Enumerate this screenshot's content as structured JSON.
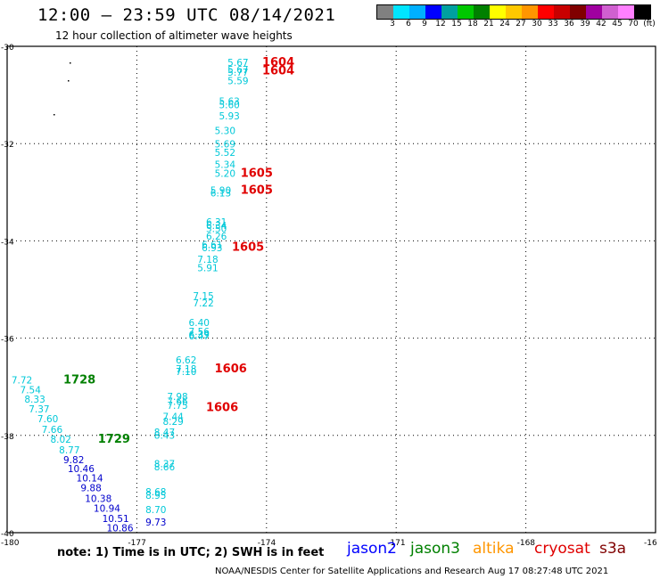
{
  "header": {
    "title": "12:00 – 23:59 UTC 08/14/2021",
    "subtitle": "12 hour collection of altimeter wave heights"
  },
  "colorbar": {
    "colors": [
      "#808080",
      "#00e5ff",
      "#00b0ff",
      "#0000ff",
      "#00a0a0",
      "#00c800",
      "#008000",
      "#ffff00",
      "#ffc800",
      "#ff9600",
      "#ff0000",
      "#c80000",
      "#800000",
      "#a000a0",
      "#d060d0",
      "#ff80ff",
      "#000000"
    ],
    "labels": [
      "3",
      "6",
      "9",
      "12",
      "15",
      "18",
      "21",
      "24",
      "27",
      "30",
      "33",
      "36",
      "39",
      "42",
      "45",
      "70",
      "(ft)"
    ]
  },
  "map": {
    "lat_labels": [
      "-30",
      "-32",
      "-34",
      "-36",
      "-38",
      "-40"
    ],
    "lon_labels": [
      "-180",
      "-177",
      "-174",
      "-171",
      "-168",
      "-16"
    ],
    "grid": "dotted"
  },
  "points": [
    {
      "t": "5.67",
      "lon": -174.9,
      "lat": -30.4,
      "c": "#00c8d8"
    },
    {
      "t": "5.67",
      "lon": -174.9,
      "lat": -30.55,
      "c": "#00c8d8"
    },
    {
      "t": "5.77",
      "lon": -174.9,
      "lat": -30.6,
      "c": "#00c8d8"
    },
    {
      "t": "5.59",
      "lon": -174.9,
      "lat": -30.78,
      "c": "#00c8d8"
    },
    {
      "t": "5.63",
      "lon": -175.1,
      "lat": -31.2,
      "c": "#00c8d8"
    },
    {
      "t": "5.60",
      "lon": -175.1,
      "lat": -31.27,
      "c": "#00c8d8"
    },
    {
      "t": "5.93",
      "lon": -175.1,
      "lat": -31.5,
      "c": "#00c8d8"
    },
    {
      "t": "5.30",
      "lon": -175.2,
      "lat": -31.8,
      "c": "#00c8d8"
    },
    {
      "t": "5.69",
      "lon": -175.2,
      "lat": -32.08,
      "c": "#00c8d8"
    },
    {
      "t": "5.52",
      "lon": -175.2,
      "lat": -32.25,
      "c": "#00c8d8"
    },
    {
      "t": "5.34",
      "lon": -175.2,
      "lat": -32.5,
      "c": "#00c8d8"
    },
    {
      "t": "5.20",
      "lon": -175.2,
      "lat": -32.68,
      "c": "#00c8d8"
    },
    {
      "t": "5.90",
      "lon": -175.3,
      "lat": -33.03,
      "c": "#00c8d8"
    },
    {
      "t": "6.13",
      "lon": -175.3,
      "lat": -33.09,
      "c": "#00c8d8"
    },
    {
      "t": "6.31",
      "lon": -175.4,
      "lat": -33.68,
      "c": "#00c8d8"
    },
    {
      "t": "6.34",
      "lon": -175.4,
      "lat": -33.75,
      "c": "#00c8d8"
    },
    {
      "t": "5.50",
      "lon": -175.4,
      "lat": -33.82,
      "c": "#00c8d8"
    },
    {
      "t": "6.26",
      "lon": -175.4,
      "lat": -33.97,
      "c": "#00c8d8"
    },
    {
      "t": "6.61",
      "lon": -175.5,
      "lat": -34.15,
      "c": "#00c8d8"
    },
    {
      "t": "6.93",
      "lon": -175.5,
      "lat": -34.21,
      "c": "#00c8d8"
    },
    {
      "t": "7.18",
      "lon": -175.6,
      "lat": -34.45,
      "c": "#00c8d8"
    },
    {
      "t": "5.91",
      "lon": -175.6,
      "lat": -34.62,
      "c": "#00c8d8"
    },
    {
      "t": "7.15",
      "lon": -175.7,
      "lat": -35.2,
      "c": "#00c8d8"
    },
    {
      "t": "7.22",
      "lon": -175.7,
      "lat": -35.35,
      "c": "#00c8d8"
    },
    {
      "t": "6.40",
      "lon": -175.8,
      "lat": -35.75,
      "c": "#00c8d8"
    },
    {
      "t": "7.56",
      "lon": -175.8,
      "lat": -35.93,
      "c": "#00c8d8"
    },
    {
      "t": "6.39",
      "lon": -175.8,
      "lat": -36.0,
      "c": "#00c8d8"
    },
    {
      "t": "6.47",
      "lon": -175.8,
      "lat": -36.03,
      "c": "#00c8d8"
    },
    {
      "t": "6.62",
      "lon": -176.1,
      "lat": -36.52,
      "c": "#00c8d8"
    },
    {
      "t": "7.18",
      "lon": -176.1,
      "lat": -36.7,
      "c": "#00c8d8"
    },
    {
      "t": "7.10",
      "lon": -176.1,
      "lat": -36.76,
      "c": "#00c8d8"
    },
    {
      "t": "7.98",
      "lon": -176.3,
      "lat": -37.27,
      "c": "#00c8d8"
    },
    {
      "t": "7.66",
      "lon": -176.3,
      "lat": -37.37,
      "c": "#00c8d8"
    },
    {
      "t": "7.75",
      "lon": -176.3,
      "lat": -37.45,
      "c": "#00c8d8"
    },
    {
      "t": "7.44",
      "lon": -176.4,
      "lat": -37.68,
      "c": "#00c8d8"
    },
    {
      "t": "8.29",
      "lon": -176.4,
      "lat": -37.78,
      "c": "#00c8d8"
    },
    {
      "t": "8.47",
      "lon": -176.6,
      "lat": -38.0,
      "c": "#00c8d8"
    },
    {
      "t": "8.43",
      "lon": -176.6,
      "lat": -38.07,
      "c": "#00c8d8"
    },
    {
      "t": "8.37",
      "lon": -176.6,
      "lat": -38.65,
      "c": "#00c8d8"
    },
    {
      "t": "8.66",
      "lon": -176.6,
      "lat": -38.72,
      "c": "#00c8d8"
    },
    {
      "t": "8.68",
      "lon": -176.8,
      "lat": -39.23,
      "c": "#00c8d8"
    },
    {
      "t": "8.95",
      "lon": -176.8,
      "lat": -39.3,
      "c": "#00c8d8"
    },
    {
      "t": "8.70",
      "lon": -176.8,
      "lat": -39.6,
      "c": "#00c8d8"
    },
    {
      "t": "9.73",
      "lon": -176.8,
      "lat": -39.85,
      "c": "#0000cc"
    },
    {
      "t": "7.72",
      "lon": -179.9,
      "lat": -36.93,
      "c": "#00c8d8"
    },
    {
      "t": "7.54",
      "lon": -179.7,
      "lat": -37.13,
      "c": "#00c8d8"
    },
    {
      "t": "8.33",
      "lon": -179.6,
      "lat": -37.33,
      "c": "#00c8d8"
    },
    {
      "t": "7.37",
      "lon": -179.5,
      "lat": -37.53,
      "c": "#00c8d8"
    },
    {
      "t": "7.60",
      "lon": -179.3,
      "lat": -37.73,
      "c": "#00c8d8"
    },
    {
      "t": "7.66",
      "lon": -179.2,
      "lat": -37.95,
      "c": "#00c8d8"
    },
    {
      "t": "8.02",
      "lon": -179.0,
      "lat": -38.15,
      "c": "#00c8d8"
    },
    {
      "t": "8.77",
      "lon": -178.8,
      "lat": -38.37,
      "c": "#00c8d8"
    },
    {
      "t": "9.82",
      "lon": -178.7,
      "lat": -38.57,
      "c": "#0000cc"
    },
    {
      "t": "10.46",
      "lon": -178.6,
      "lat": -38.75,
      "c": "#0000cc"
    },
    {
      "t": "10.14",
      "lon": -178.4,
      "lat": -38.95,
      "c": "#0000cc"
    },
    {
      "t": "9.88",
      "lon": -178.3,
      "lat": -39.15,
      "c": "#0000cc"
    },
    {
      "t": "10.38",
      "lon": -178.2,
      "lat": -39.37,
      "c": "#0000cc"
    },
    {
      "t": "10.94",
      "lon": -178.0,
      "lat": -39.57,
      "c": "#0000cc"
    },
    {
      "t": "10.51",
      "lon": -177.8,
      "lat": -39.78,
      "c": "#0000cc"
    },
    {
      "t": "10.86",
      "lon": -177.7,
      "lat": -39.97,
      "c": "#0000cc"
    }
  ],
  "time_labels": [
    {
      "t": "1604",
      "lon": -174.1,
      "lat": -30.4,
      "c": "#e00000"
    },
    {
      "t": "1604",
      "lon": -174.1,
      "lat": -30.58,
      "c": "#e00000"
    },
    {
      "t": "1605",
      "lon": -174.6,
      "lat": -32.68,
      "c": "#e00000"
    },
    {
      "t": "1605",
      "lon": -174.6,
      "lat": -33.03,
      "c": "#e00000"
    },
    {
      "t": "1605",
      "lon": -174.8,
      "lat": -34.2,
      "c": "#e00000"
    },
    {
      "t": "1606",
      "lon": -175.2,
      "lat": -36.7,
      "c": "#e00000"
    },
    {
      "t": "1606",
      "lon": -175.4,
      "lat": -37.5,
      "c": "#e00000"
    },
    {
      "t": "1728",
      "lon": -178.7,
      "lat": -36.93,
      "c": "#008000"
    },
    {
      "t": "1729",
      "lon": -177.9,
      "lat": -38.15,
      "c": "#008000"
    }
  ],
  "footer": {
    "note": "note:  1) Time is in UTC;  2) SWH is in feet",
    "credit": "NOAA/NESDIS Center for Satellite Applications and Research     Aug 17 08:27:48 UTC 2021",
    "legend": [
      {
        "label": "jason2",
        "color": "#0000ff"
      },
      {
        "label": "jason3",
        "color": "#008000"
      },
      {
        "label": "altika",
        "color": "#ff9600"
      },
      {
        "label": "cryosat",
        "color": "#e00000"
      },
      {
        "label": "s3a",
        "color": "#800000"
      }
    ]
  }
}
